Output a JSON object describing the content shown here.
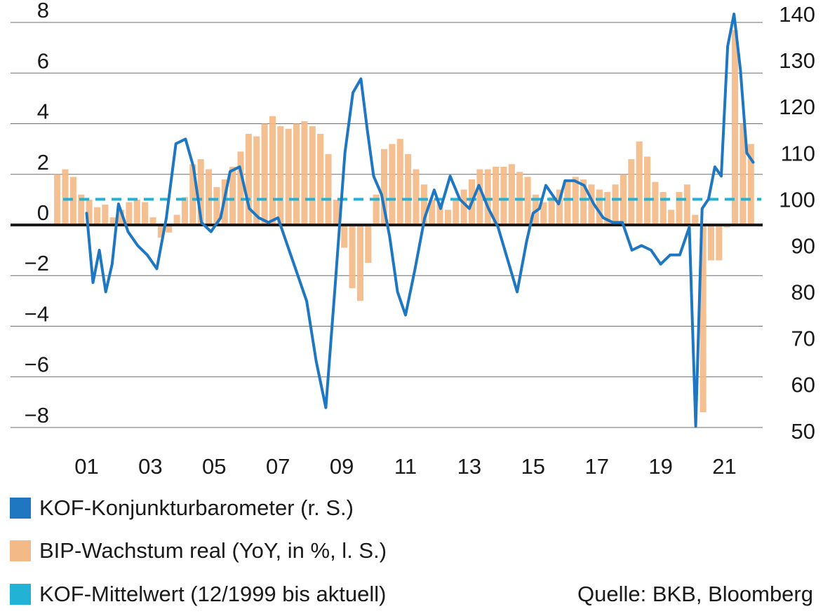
{
  "chart_data": {
    "type": "bar",
    "title": "",
    "x_ticks": [
      "01",
      "03",
      "05",
      "07",
      "09",
      "11",
      "13",
      "15",
      "17",
      "19",
      "21"
    ],
    "y_left_ticks": [
      "8",
      "6",
      "4",
      "2",
      "0",
      "−2",
      "−4",
      "−6",
      "−8"
    ],
    "y_right_ticks": [
      "140",
      "130",
      "120",
      "110",
      "100",
      "90",
      "80",
      "70",
      "60",
      "50"
    ],
    "y_left_range": [
      -8.5,
      8.5
    ],
    "y_right_range": [
      48,
      140
    ],
    "x_range": [
      2000.0,
      2022.0
    ],
    "grid": true,
    "colors": {
      "kof": "#1f77c1",
      "gdp": "#f3b986",
      "mean": "#21b2d6",
      "zero": "#1a1a1a",
      "grid": "#6e6e6e"
    },
    "series": [
      {
        "name": "BIP-Wachstum real (YoY, in %, l. S.)",
        "kind": "bar",
        "axis": "left",
        "x": [
          2000.08,
          2000.33,
          2000.58,
          2000.83,
          2001.08,
          2001.33,
          2001.58,
          2001.83,
          2002.08,
          2002.33,
          2002.58,
          2002.83,
          2003.08,
          2003.33,
          2003.58,
          2003.83,
          2004.08,
          2004.33,
          2004.58,
          2004.83,
          2005.08,
          2005.33,
          2005.58,
          2005.83,
          2006.08,
          2006.33,
          2006.58,
          2006.83,
          2007.08,
          2007.33,
          2007.58,
          2007.83,
          2008.08,
          2008.33,
          2008.58,
          2008.83,
          2009.08,
          2009.33,
          2009.58,
          2009.83,
          2010.08,
          2010.33,
          2010.58,
          2010.83,
          2011.08,
          2011.33,
          2011.58,
          2011.83,
          2012.08,
          2012.33,
          2012.58,
          2012.83,
          2013.08,
          2013.33,
          2013.58,
          2013.83,
          2014.08,
          2014.33,
          2014.58,
          2014.83,
          2015.08,
          2015.33,
          2015.58,
          2015.83,
          2016.08,
          2016.33,
          2016.58,
          2016.83,
          2017.08,
          2017.33,
          2017.58,
          2017.83,
          2018.08,
          2018.33,
          2018.58,
          2018.83,
          2019.08,
          2019.33,
          2019.58,
          2019.83,
          2020.08,
          2020.33,
          2020.58,
          2020.83,
          2021.08,
          2021.33,
          2021.58,
          2021.83
        ],
        "values": [
          2.0,
          2.2,
          1.9,
          1.2,
          1.0,
          0.7,
          0.8,
          0.3,
          0.6,
          0.9,
          1.0,
          0.9,
          0.3,
          -0.5,
          -0.3,
          0.4,
          1.1,
          2.4,
          2.6,
          2.2,
          1.5,
          1.8,
          2.3,
          2.9,
          3.6,
          3.5,
          4.0,
          4.3,
          3.9,
          3.8,
          4.0,
          4.1,
          3.9,
          3.6,
          2.8,
          1.0,
          -0.9,
          -2.5,
          -3.0,
          -1.5,
          1.2,
          3.0,
          3.2,
          3.4,
          2.8,
          2.2,
          1.6,
          1.0,
          0.9,
          0.6,
          1.0,
          1.4,
          1.8,
          2.2,
          2.2,
          2.3,
          2.3,
          2.4,
          2.1,
          1.9,
          1.2,
          0.9,
          1.1,
          1.4,
          1.7,
          1.9,
          1.8,
          1.6,
          1.4,
          1.3,
          1.6,
          2.0,
          2.6,
          3.3,
          2.7,
          1.7,
          1.3,
          0.6,
          1.3,
          1.6,
          0.4,
          -7.4,
          -1.4,
          -1.4,
          -0.1,
          7.7,
          4.0,
          3.2
        ],
        "bar_width": 0.2
      },
      {
        "name": "KOF-Konjunkturbarometer (r. S.)",
        "kind": "line",
        "axis": "right",
        "x": [
          2001.0,
          2001.2,
          2001.4,
          2001.6,
          2001.8,
          2002.0,
          2002.3,
          2002.6,
          2002.9,
          2003.2,
          2003.5,
          2003.8,
          2004.1,
          2004.35,
          2004.6,
          2004.9,
          2005.2,
          2005.5,
          2005.8,
          2006.1,
          2006.4,
          2006.7,
          2007.0,
          2007.3,
          2007.6,
          2007.9,
          2008.2,
          2008.5,
          2008.8,
          2009.1,
          2009.35,
          2009.6,
          2009.8,
          2010.0,
          2010.25,
          2010.5,
          2010.75,
          2011.0,
          2011.3,
          2011.6,
          2011.9,
          2012.1,
          2012.4,
          2012.7,
          2013.0,
          2013.3,
          2013.6,
          2013.9,
          2014.2,
          2014.5,
          2014.8,
          2015.0,
          2015.2,
          2015.4,
          2015.6,
          2015.8,
          2016.0,
          2016.3,
          2016.6,
          2016.9,
          2017.2,
          2017.5,
          2017.8,
          2018.1,
          2018.4,
          2018.7,
          2019.0,
          2019.3,
          2019.6,
          2019.9,
          2020.1,
          2020.3,
          2020.5,
          2020.7,
          2020.9,
          2021.1,
          2021.3,
          2021.5,
          2021.7,
          2021.9
        ],
        "values": [
          97,
          82,
          89,
          80,
          86,
          99,
          93,
          90,
          88,
          85,
          96,
          112,
          113,
          107,
          95,
          93,
          96,
          106,
          107,
          98,
          96,
          95,
          96,
          90,
          84,
          78,
          65,
          55,
          82,
          110,
          123,
          126,
          115,
          105,
          101,
          92,
          80,
          75,
          85,
          96,
          102,
          98,
          105,
          100,
          98,
          103,
          98,
          94,
          87,
          80,
          91,
          97,
          98,
          103,
          101,
          99,
          104,
          104,
          103,
          99,
          96,
          95,
          95,
          89,
          90,
          89,
          86,
          88,
          88,
          94,
          51,
          98,
          100,
          107,
          105,
          133,
          140,
          128,
          110,
          108
        ]
      },
      {
        "name": "KOF-Mittelwert (12/1999 bis aktuell)",
        "kind": "hline",
        "axis": "right",
        "values": [
          100.0
        ]
      }
    ]
  },
  "legend": [
    {
      "label": "KOF-Konjunkturbarometer (r. S.)",
      "color": "#1f77c1"
    },
    {
      "label": "BIP-Wachstum real (YoY, in %, l. S.)",
      "color": "#f3b986"
    },
    {
      "label": "KOF-Mittelwert (12/1999 bis aktuell)",
      "color": "#21b2d6"
    }
  ],
  "source": "Quelle: BKB, Bloomberg"
}
